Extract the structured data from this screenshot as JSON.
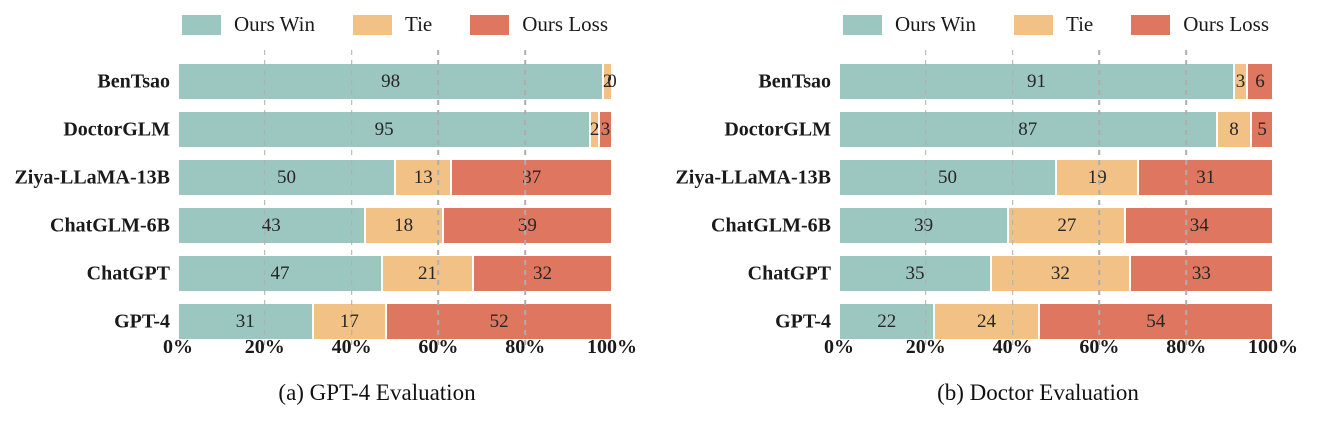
{
  "palette": {
    "series_colors": [
      "#9cc7c1",
      "#f1c185",
      "#de7660"
    ],
    "gridline_color": "#aeaeae",
    "value_label_color": "#262626",
    "text_color": "#1a1a1a"
  },
  "legend": {
    "items": [
      {
        "label": "Ours Win",
        "color": "#9cc7c1"
      },
      {
        "label": "Tie",
        "color": "#f1c185"
      },
      {
        "label": "Ours Loss",
        "color": "#de7660"
      }
    ]
  },
  "axis": {
    "tick_positions": [
      0,
      20,
      40,
      60,
      80,
      100
    ],
    "gridline_positions": [
      20,
      40,
      60,
      80
    ]
  },
  "chart_data": [
    {
      "type": "bar",
      "orientation": "horizontal",
      "stacked": true,
      "title": "(a) GPT-4 Evaluation",
      "categories": [
        "BenTsao",
        "DoctorGLM",
        "Ziya-LLaMA-13B",
        "ChatGLM-6B",
        "ChatGPT",
        "GPT-4"
      ],
      "series": [
        {
          "name": "Ours Win",
          "values": [
            98,
            95,
            50,
            43,
            47,
            31
          ]
        },
        {
          "name": "Tie",
          "values": [
            2,
            2,
            13,
            18,
            21,
            17
          ]
        },
        {
          "name": "Ours Loss",
          "values": [
            0,
            3,
            37,
            39,
            32,
            52
          ]
        }
      ],
      "xlabel": "",
      "ylabel": "",
      "xlim": [
        0,
        100
      ],
      "xticks": [
        "0%",
        "20%",
        "40%",
        "60%",
        "80%",
        "100%"
      ],
      "grid": "vertical dashed at 20/40/60/80, drawn over bars",
      "legend_position": "top center"
    },
    {
      "type": "bar",
      "orientation": "horizontal",
      "stacked": true,
      "title": "(b) Doctor Evaluation",
      "categories": [
        "BenTsao",
        "DoctorGLM",
        "Ziya-LLaMA-13B",
        "ChatGLM-6B",
        "ChatGPT",
        "GPT-4"
      ],
      "series": [
        {
          "name": "Ours Win",
          "values": [
            91,
            87,
            50,
            39,
            35,
            22
          ]
        },
        {
          "name": "Tie",
          "values": [
            3,
            8,
            19,
            27,
            32,
            24
          ]
        },
        {
          "name": "Ours Loss",
          "values": [
            6,
            5,
            31,
            34,
            33,
            54
          ]
        }
      ],
      "xlabel": "",
      "ylabel": "",
      "xlim": [
        0,
        100
      ],
      "xticks": [
        "0%",
        "20%",
        "40%",
        "60%",
        "80%",
        "100%"
      ],
      "grid": "vertical dashed at 20/40/60/80, drawn over bars",
      "legend_position": "top center"
    }
  ]
}
